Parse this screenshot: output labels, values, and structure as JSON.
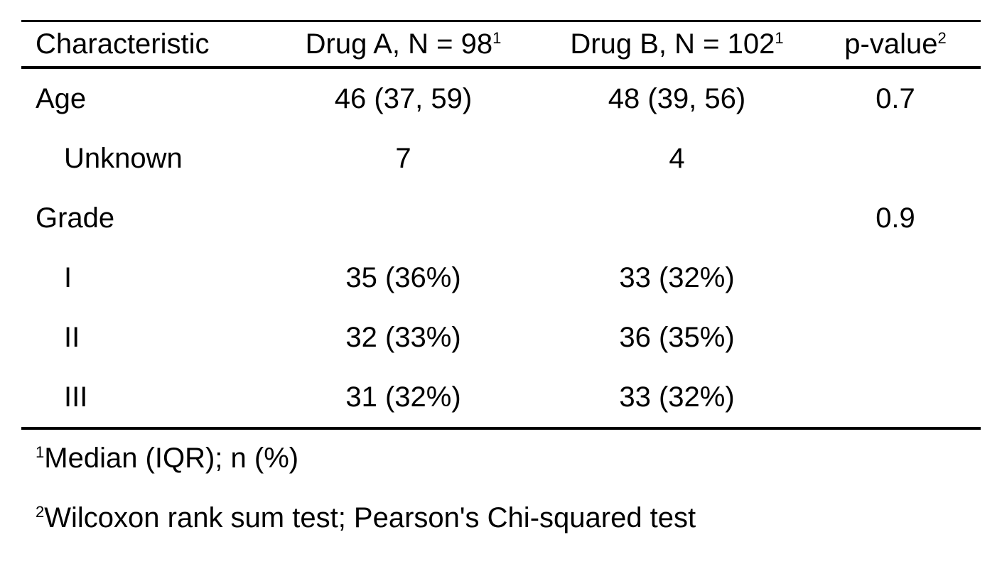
{
  "table": {
    "headers": {
      "characteristic": "Characteristic",
      "drug_a": "Drug A, N = 98",
      "drug_a_sup": "1",
      "drug_b": "Drug B, N = 102",
      "drug_b_sup": "1",
      "p_value": "p-value",
      "p_value_sup": "2"
    },
    "rows": [
      {
        "label": "Age",
        "drug_a": "46 (37, 59)",
        "drug_b": "48 (39, 56)",
        "p_value": "0.7"
      },
      {
        "label": "Unknown",
        "drug_a": "7",
        "drug_b": "4",
        "p_value": ""
      },
      {
        "label": "Grade",
        "drug_a": "",
        "drug_b": "",
        "p_value": "0.9"
      },
      {
        "label": "I",
        "drug_a": "35 (36%)",
        "drug_b": "33 (32%)",
        "p_value": ""
      },
      {
        "label": "II",
        "drug_a": "32 (33%)",
        "drug_b": "36 (35%)",
        "p_value": ""
      },
      {
        "label": "III",
        "drug_a": "31 (32%)",
        "drug_b": "33 (32%)",
        "p_value": ""
      }
    ]
  },
  "footnotes": [
    {
      "marker": "1",
      "text": "Median (IQR); n (%)"
    },
    {
      "marker": "2",
      "text": "Wilcoxon rank sum test; Pearson's Chi-squared test"
    }
  ]
}
